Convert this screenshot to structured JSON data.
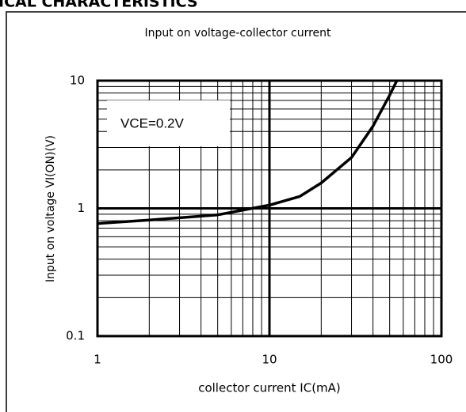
{
  "page_heading": "ICAL CHARACTERISTICS",
  "chart_data": {
    "type": "line",
    "title": "Input on voltage-collector current",
    "x_label": "collector current  IC(mA)",
    "y_label": "Input on voltage  VI(ON)(V)",
    "annotation": "VCE=0.2V",
    "x": [
      1,
      2,
      5,
      10,
      15,
      20,
      30,
      40,
      50,
      55
    ],
    "values": [
      0.76,
      0.81,
      0.89,
      1.06,
      1.24,
      1.58,
      2.5,
      4.4,
      7.7,
      10
    ],
    "color": "#000000",
    "xlim": [
      1,
      100
    ],
    "ylim": [
      0.1,
      10
    ],
    "xticks": [
      1,
      10,
      100
    ],
    "yticks": [
      0.1,
      1,
      10
    ],
    "xminor_ticks": [
      2,
      3,
      4,
      5,
      6,
      7,
      8,
      9,
      20,
      30,
      40,
      50,
      60,
      70,
      80,
      90
    ],
    "yminor_ticks": [
      0.2,
      0.3,
      0.4,
      0.5,
      0.6,
      0.7,
      0.8,
      0.9,
      2,
      3,
      4,
      5,
      6,
      7,
      8,
      9
    ],
    "xscale": "log",
    "yscale": "log",
    "grid": true
  }
}
